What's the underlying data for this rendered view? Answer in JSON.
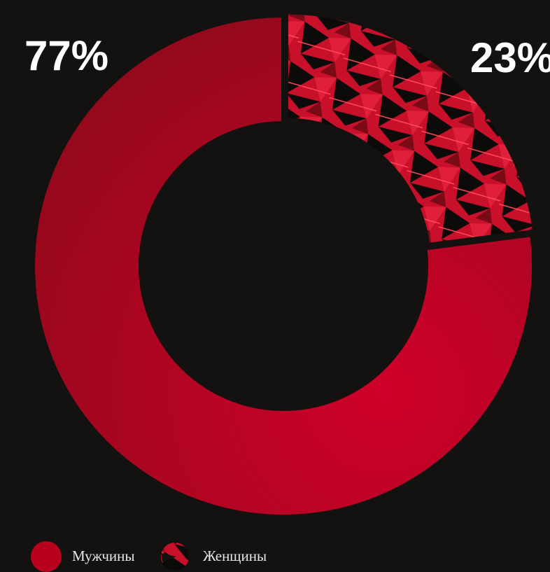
{
  "chart_data": {
    "type": "donut",
    "categories": [
      "Мужчины",
      "Женщины"
    ],
    "values": [
      77,
      23
    ],
    "value_labels": [
      "77%",
      "23%"
    ],
    "colors": [
      "#b8001f",
      "#d4142e"
    ]
  }
}
